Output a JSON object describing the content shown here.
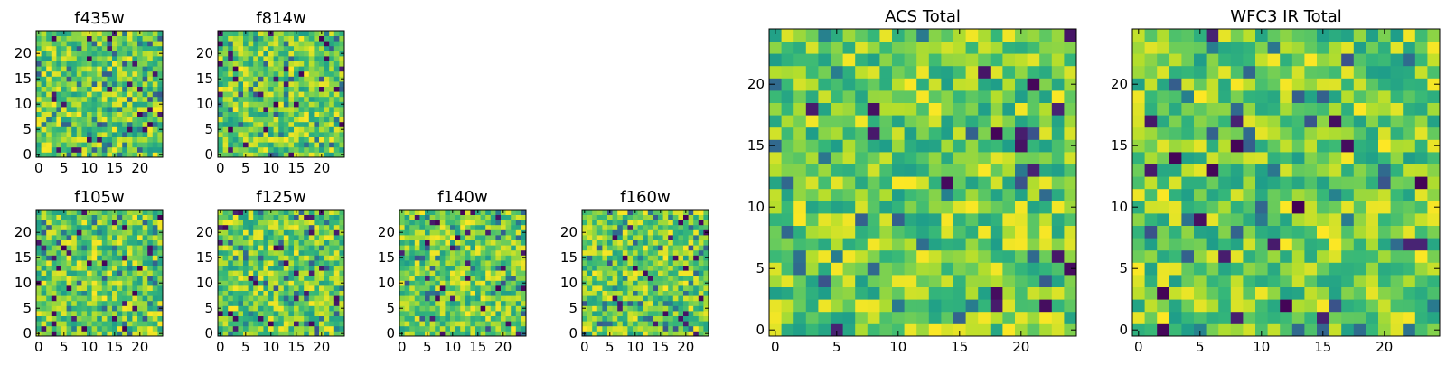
{
  "chart_data": [
    {
      "type": "heatmap",
      "title": "f435w",
      "xlabel": "",
      "ylabel": "",
      "size": 25,
      "xlim": [
        -0.5,
        24.5
      ],
      "ylim": [
        -0.5,
        24.5
      ],
      "x_ticks": [
        0,
        5,
        10,
        15,
        20
      ],
      "y_ticks": [
        0,
        5,
        10,
        15,
        20
      ],
      "grid": false,
      "colormap": "viridis"
    },
    {
      "type": "heatmap",
      "title": "f814w",
      "xlabel": "",
      "ylabel": "",
      "size": 25,
      "xlim": [
        -0.5,
        24.5
      ],
      "ylim": [
        -0.5,
        24.5
      ],
      "x_ticks": [
        0,
        5,
        10,
        15,
        20
      ],
      "y_ticks": [
        0,
        5,
        10,
        15,
        20
      ],
      "grid": false,
      "colormap": "viridis"
    },
    {
      "type": "heatmap",
      "title": "f105w",
      "xlabel": "",
      "ylabel": "",
      "size": 25,
      "xlim": [
        -0.5,
        24.5
      ],
      "ylim": [
        -0.5,
        24.5
      ],
      "x_ticks": [
        0,
        5,
        10,
        15,
        20
      ],
      "y_ticks": [
        0,
        5,
        10,
        15,
        20
      ],
      "grid": false,
      "colormap": "viridis"
    },
    {
      "type": "heatmap",
      "title": "f125w",
      "xlabel": "",
      "ylabel": "",
      "size": 25,
      "xlim": [
        -0.5,
        24.5
      ],
      "ylim": [
        -0.5,
        24.5
      ],
      "x_ticks": [
        0,
        5,
        10,
        15,
        20
      ],
      "y_ticks": [
        0,
        5,
        10,
        15,
        20
      ],
      "grid": false,
      "colormap": "viridis"
    },
    {
      "type": "heatmap",
      "title": "f140w",
      "xlabel": "",
      "ylabel": "",
      "size": 25,
      "xlim": [
        -0.5,
        24.5
      ],
      "ylim": [
        -0.5,
        24.5
      ],
      "x_ticks": [
        0,
        5,
        10,
        15,
        20
      ],
      "y_ticks": [
        0,
        5,
        10,
        15,
        20
      ],
      "grid": false,
      "colormap": "viridis"
    },
    {
      "type": "heatmap",
      "title": "f160w",
      "xlabel": "",
      "ylabel": "",
      "size": 25,
      "xlim": [
        -0.5,
        24.5
      ],
      "ylim": [
        -0.5,
        24.5
      ],
      "x_ticks": [
        0,
        5,
        10,
        15,
        20
      ],
      "y_ticks": [
        0,
        5,
        10,
        15,
        20
      ],
      "grid": false,
      "colormap": "viridis"
    },
    {
      "type": "heatmap",
      "title": "ACS Total",
      "xlabel": "",
      "ylabel": "",
      "size": 25,
      "xlim": [
        -0.5,
        24.5
      ],
      "ylim": [
        -0.5,
        24.5
      ],
      "x_ticks": [
        0,
        5,
        10,
        15,
        20
      ],
      "y_ticks": [
        0,
        5,
        10,
        15,
        20
      ],
      "grid": false,
      "colormap": "viridis"
    },
    {
      "type": "heatmap",
      "title": "WFC3 IR Total",
      "xlabel": "",
      "ylabel": "",
      "size": 25,
      "xlim": [
        -0.5,
        24.5
      ],
      "ylim": [
        -0.5,
        24.5
      ],
      "x_ticks": [
        0,
        5,
        10,
        15,
        20
      ],
      "y_ticks": [
        0,
        5,
        10,
        15,
        20
      ],
      "grid": false,
      "colormap": "viridis"
    }
  ]
}
